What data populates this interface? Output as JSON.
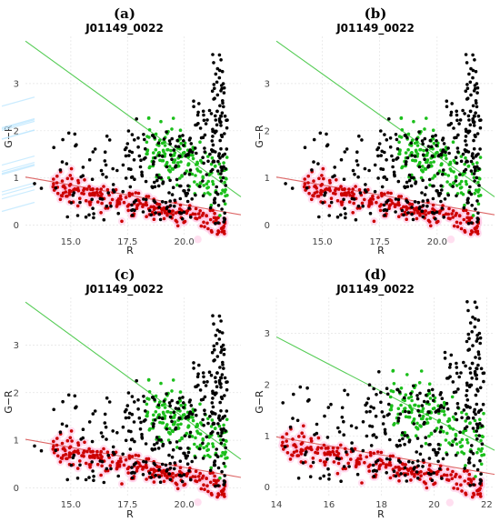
{
  "figure": {
    "background": "#ffffff"
  },
  "colors": {
    "black": "#000000",
    "green": "#1bbf1b",
    "red": "#cc0000",
    "green_line": "#55cc55",
    "red_line": "#dd6666",
    "halo": "#ffb8de"
  },
  "chart_data": [
    {
      "panel": "(a)",
      "type": "scatter",
      "title": "J01149_0022",
      "xlabel": "R",
      "ylabel": "G−R",
      "xlim": [
        13,
        22.5
      ],
      "ylim": [
        -0.2,
        4.0
      ],
      "xticks": [
        15.0,
        17.5,
        20.0
      ],
      "xtick_labels": [
        "15.0",
        "17.5",
        "20.0"
      ],
      "yticks": [
        0,
        1,
        2,
        3
      ],
      "ytick_labels": [
        "0",
        "1",
        "2",
        "3"
      ],
      "grid": true,
      "green_line": {
        "x": [
          13,
          22.5
        ],
        "y": [
          3.9,
          0.6
        ]
      },
      "red_line": {
        "x": [
          13,
          22.5
        ],
        "y": [
          1.02,
          0.22
        ]
      },
      "halo": true,
      "halo_extent": "full"
    },
    {
      "panel": "(b)",
      "type": "scatter",
      "title": "J01149_0022",
      "xlabel": "R",
      "ylabel": "G−R",
      "xlim": [
        13,
        22.5
      ],
      "ylim": [
        -0.2,
        4.0
      ],
      "xticks": [
        15.0,
        17.5,
        20.0
      ],
      "xtick_labels": [
        "15.0",
        "17.5",
        "20.0"
      ],
      "yticks": [
        0,
        1,
        2,
        3
      ],
      "ytick_labels": [
        "0",
        "1",
        "2",
        "3"
      ],
      "grid": true,
      "green_line": {
        "x": [
          13,
          22.5
        ],
        "y": [
          3.9,
          0.6
        ]
      },
      "red_line": {
        "x": [
          13,
          22.5
        ],
        "y": [
          1.02,
          0.22
        ]
      },
      "halo": true,
      "halo_extent": "red"
    },
    {
      "panel": "(c)",
      "type": "scatter",
      "title": "J01149_0022",
      "xlabel": "R",
      "ylabel": "G−R",
      "xlim": [
        13,
        22.5
      ],
      "ylim": [
        -0.2,
        4.0
      ],
      "xticks": [
        15.0,
        17.5,
        20.0
      ],
      "xtick_labels": [
        "15.0",
        "17.5",
        "20.0"
      ],
      "yticks": [
        0,
        1,
        2,
        3
      ],
      "ytick_labels": [
        "0",
        "1",
        "2",
        "3"
      ],
      "grid": true,
      "green_line": {
        "x": [
          13,
          22.5
        ],
        "y": [
          3.9,
          0.6
        ]
      },
      "red_line": {
        "x": [
          13,
          22.5
        ],
        "y": [
          1.02,
          0.22
        ]
      },
      "halo": true,
      "halo_extent": "red"
    },
    {
      "panel": "(d)",
      "type": "scatter",
      "title": "J01149_0022",
      "xlabel": "R",
      "ylabel": "G−R",
      "xlim": [
        14,
        22.3
      ],
      "ylim": [
        -0.2,
        3.7
      ],
      "xticks": [
        14,
        16,
        18,
        20,
        22
      ],
      "xtick_labels": [
        "14",
        "16",
        "18",
        "20",
        "22"
      ],
      "yticks": [
        0,
        1,
        2,
        3
      ],
      "ytick_labels": [
        "0",
        "1",
        "2",
        "3"
      ],
      "grid": true,
      "green_line": {
        "x": [
          14,
          22.3
        ],
        "y": [
          2.93,
          0.72
        ]
      },
      "red_line": {
        "x": [
          14,
          22.3
        ],
        "y": [
          0.98,
          0.25
        ]
      },
      "halo": true,
      "halo_extent": "red"
    }
  ]
}
